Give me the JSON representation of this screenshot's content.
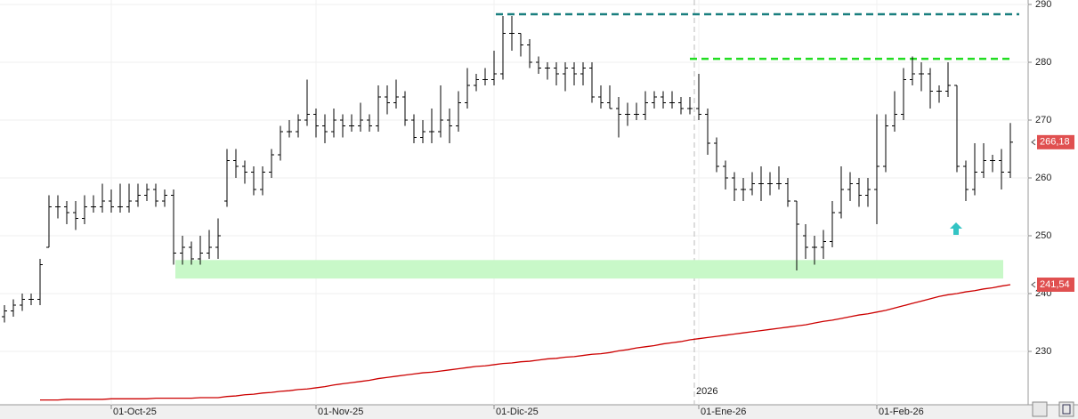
{
  "chart_data": {
    "type": "ohlc",
    "categories": [
      null,
      null,
      null,
      null,
      null,
      null,
      null,
      null,
      null,
      null,
      null,
      null,
      "01-Oct-25",
      null,
      null,
      null,
      null,
      null,
      null,
      null,
      null,
      null,
      null,
      null,
      null,
      null,
      null,
      null,
      null,
      null,
      null,
      null,
      null,
      null,
      null,
      "01-Nov-25",
      null,
      null,
      null,
      null,
      null,
      null,
      null,
      null,
      null,
      null,
      null,
      null,
      null,
      null,
      null,
      null,
      null,
      null,
      null,
      "01-Dic-25",
      null,
      null,
      null,
      null,
      null,
      null,
      null,
      null,
      null,
      null,
      null,
      null,
      null,
      null,
      null,
      null,
      null,
      null,
      null,
      null,
      null,
      null,
      "01-Ene-26",
      null,
      null,
      null,
      null,
      null,
      null,
      null,
      null,
      null,
      null,
      null,
      null,
      null,
      null,
      null,
      null,
      null,
      null,
      null,
      "01-Feb-26",
      null,
      null,
      null,
      null,
      null,
      null,
      null,
      null,
      null,
      null,
      null,
      null,
      null,
      null,
      null
    ],
    "open": [
      236,
      237,
      238,
      239,
      239,
      248,
      255,
      255,
      254,
      253,
      255,
      255,
      256,
      255,
      255,
      256,
      257,
      258,
      256,
      257,
      247,
      248,
      246,
      247,
      248,
      256,
      263,
      262,
      261,
      258,
      261,
      264,
      268,
      268,
      270,
      271,
      269,
      268,
      270,
      269,
      269,
      270,
      269,
      274,
      273,
      274,
      270,
      267,
      268,
      268,
      270,
      269,
      273,
      276,
      277,
      277,
      278,
      285,
      285,
      283,
      280,
      279,
      279,
      278,
      279,
      278,
      279,
      274,
      273,
      272,
      271,
      271,
      271,
      273,
      274,
      273,
      273,
      272,
      272,
      271,
      266,
      262,
      260,
      258,
      258,
      259,
      259,
      259,
      259,
      256,
      250,
      248,
      248,
      249,
      254,
      258,
      259,
      257,
      258,
      262,
      269,
      271,
      277,
      278,
      278,
      275,
      275,
      276,
      262,
      258,
      261,
      263,
      263,
      261
    ],
    "high": [
      238,
      239,
      240,
      240,
      246,
      257,
      257,
      256,
      256,
      257,
      257,
      259,
      258,
      259,
      259,
      259,
      259,
      259,
      258,
      258,
      250,
      249,
      250,
      251,
      253,
      265,
      265,
      263,
      262,
      262,
      265,
      269,
      270,
      271,
      277,
      272,
      271,
      272,
      271,
      271,
      273,
      271,
      276,
      276,
      277,
      275,
      271,
      270,
      272,
      276,
      272,
      275,
      279,
      278,
      279,
      282,
      288,
      288,
      285,
      284,
      281,
      280,
      280,
      280,
      280,
      280,
      280,
      276,
      276,
      274,
      273,
      273,
      275,
      275,
      275,
      275,
      274,
      274,
      278,
      272,
      267,
      263,
      261,
      260,
      261,
      262,
      261,
      262,
      260,
      256,
      252,
      250,
      251,
      256,
      262,
      261,
      260,
      260,
      271,
      271,
      275,
      279,
      281,
      280,
      279,
      276,
      280,
      276,
      263,
      266,
      266,
      264,
      265,
      269.5
    ],
    "low": [
      235,
      236,
      237,
      238,
      238,
      248,
      253,
      252,
      251,
      252,
      254,
      254,
      254,
      254,
      254,
      255,
      256,
      255,
      255,
      245,
      245,
      245,
      245,
      246,
      246,
      255,
      260,
      259,
      257,
      257,
      260,
      263,
      267,
      267,
      269,
      267,
      266,
      267,
      267,
      268,
      268,
      268,
      268,
      271,
      272,
      269,
      266,
      266,
      266,
      267,
      266,
      268,
      272,
      275,
      276,
      276,
      277,
      282,
      281,
      279,
      278,
      277,
      276,
      275,
      276,
      276,
      273,
      272,
      272,
      267,
      269,
      270,
      270,
      272,
      272,
      272,
      271,
      271,
      270,
      264,
      261,
      258,
      256,
      256,
      257,
      256,
      257,
      258,
      255,
      244,
      246,
      245,
      246,
      248,
      253,
      256,
      255,
      255,
      252,
      261,
      268,
      270,
      276,
      275,
      272,
      273,
      274,
      261,
      256,
      257,
      260,
      261,
      258,
      260
    ],
    "close": [
      237,
      238,
      239,
      239,
      245,
      255,
      255,
      254,
      253,
      255,
      255,
      256,
      255,
      255,
      256,
      257,
      258,
      256,
      257,
      247,
      248,
      246,
      247,
      248,
      250,
      263,
      262,
      261,
      258,
      261,
      264,
      268,
      268,
      270,
      271,
      269,
      268,
      270,
      269,
      269,
      270,
      269,
      274,
      273,
      274,
      270,
      267,
      268,
      268,
      270,
      269,
      273,
      276,
      277,
      277,
      278,
      285,
      285,
      283,
      280,
      279,
      279,
      278,
      279,
      278,
      279,
      274,
      273,
      272,
      271,
      271,
      271,
      273,
      274,
      273,
      273,
      272,
      272,
      271,
      266,
      262,
      260,
      258,
      258,
      259,
      259,
      259,
      259,
      256,
      252,
      248,
      248,
      249,
      254,
      258,
      259,
      257,
      258,
      262,
      269,
      271,
      277,
      278,
      278,
      275,
      275,
      276,
      262,
      258,
      261,
      263,
      263,
      261,
      266.18
    ],
    "color": "#000000",
    "moving_average": {
      "color": "#cc0000",
      "values": [
        null,
        null,
        null,
        null,
        221.6,
        221.6,
        221.6,
        221.7,
        221.7,
        221.7,
        221.7,
        221.7,
        221.8,
        221.8,
        221.8,
        221.8,
        221.8,
        221.9,
        221.9,
        221.9,
        221.9,
        221.9,
        222.0,
        222.0,
        222.0,
        222.2,
        222.3,
        222.5,
        222.6,
        222.8,
        222.9,
        223.1,
        223.2,
        223.4,
        223.5,
        223.7,
        223.9,
        224.2,
        224.4,
        224.6,
        224.8,
        225.0,
        225.3,
        225.5,
        225.7,
        225.9,
        226.1,
        226.3,
        226.4,
        226.6,
        226.8,
        227.0,
        227.2,
        227.4,
        227.5,
        227.7,
        227.9,
        228.0,
        228.2,
        228.3,
        228.5,
        228.7,
        228.8,
        229.0,
        229.1,
        229.3,
        229.5,
        229.6,
        229.8,
        230.1,
        230.3,
        230.6,
        230.8,
        231.0,
        231.3,
        231.5,
        231.7,
        232.0,
        232.2,
        232.4,
        232.6,
        232.8,
        233.0,
        233.2,
        233.4,
        233.6,
        233.8,
        234.0,
        234.2,
        234.4,
        234.6,
        234.9,
        235.2,
        235.4,
        235.7,
        236.0,
        236.3,
        236.5,
        236.8,
        237.1,
        237.5,
        237.9,
        238.3,
        238.7,
        239.1,
        239.5,
        239.8,
        240.0,
        240.3,
        240.5,
        240.8,
        241.0,
        241.3,
        241.54
      ]
    },
    "levels": [
      {
        "value": 288.3,
        "color": "#1a7f7f"
      },
      {
        "value": 280.6,
        "color": "#22dd22"
      }
    ],
    "zone": {
      "range": [
        242.6,
        245.8
      ],
      "color": "#c8f8c8"
    },
    "price_labels": [
      {
        "value": 266.18,
        "label": "266,18"
      },
      {
        "value": 241.54,
        "label": "241,54"
      }
    ],
    "year_label": "2026",
    "ylim": [
      220.77,
      290.77
    ],
    "yticks": [
      230,
      240,
      250,
      260,
      270,
      280,
      290
    ],
    "grid": true
  }
}
